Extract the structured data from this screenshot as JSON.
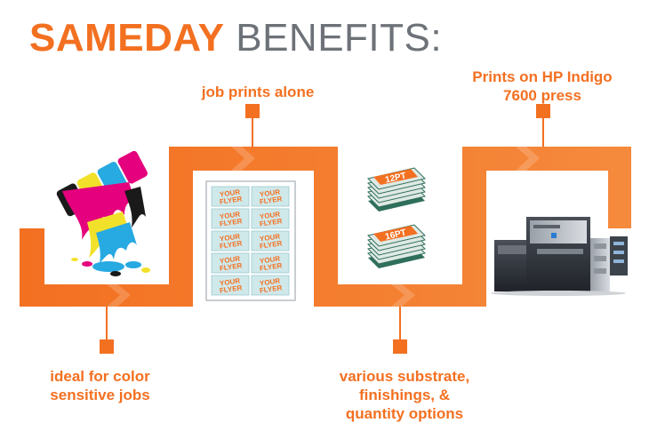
{
  "title": {
    "part1": "SAMEDAY",
    "part2": "BENEFITS:"
  },
  "benefits": [
    {
      "id": "color",
      "lines": [
        "ideal for color",
        "sensitive jobs"
      ]
    },
    {
      "id": "alone",
      "lines": [
        "job prints alone"
      ]
    },
    {
      "id": "substrate",
      "lines": [
        "various substrate,",
        "finishings, &",
        "quantity options"
      ]
    },
    {
      "id": "press",
      "lines": [
        "Prints on HP Indigo",
        "7600 press"
      ]
    }
  ],
  "sheet_card_text": [
    "YOUR",
    "FLYER"
  ],
  "paper_stacks": [
    "12PT",
    "16PT"
  ],
  "colors": {
    "orange": "#f37021",
    "orange_light": "#f58a3d",
    "gray": "#6d7278",
    "card": "#cfe8ea"
  }
}
